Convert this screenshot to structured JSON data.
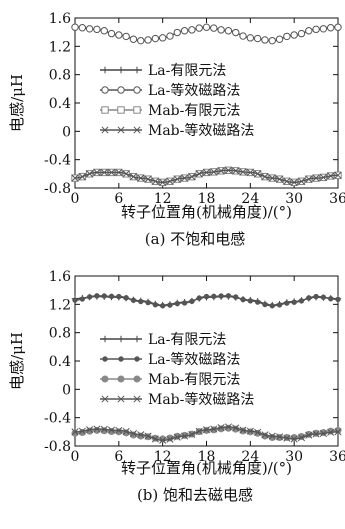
{
  "chart_data": [
    {
      "type": "line",
      "caption": "(a) 不饱和电感",
      "xlabel": "转子位置角(机械角度)/(°)",
      "ylabel": "电感/μH",
      "xlim": [
        0,
        36
      ],
      "ylim": [
        -0.8,
        1.6
      ],
      "xticks": [
        0,
        6,
        12,
        18,
        24,
        30,
        36
      ],
      "yticks": [
        -0.8,
        -0.4,
        0,
        0.4,
        0.8,
        1.2,
        1.6
      ],
      "ytick_labels": [
        "-0.8",
        "-0.4",
        "0",
        "0.4",
        "0.8",
        "1.2",
        "1.6"
      ],
      "legend_position": "center-right",
      "x": [
        0,
        3,
        6,
        9,
        12,
        15,
        18,
        21,
        24,
        27,
        30,
        33,
        36
      ],
      "series": [
        {
          "name": "La-有限元法",
          "marker": "plus",
          "values": [
            1.47,
            1.44,
            1.36,
            1.28,
            1.32,
            1.42,
            1.47,
            1.42,
            1.32,
            1.28,
            1.36,
            1.44,
            1.47
          ]
        },
        {
          "name": "La-等效磁路法",
          "marker": "circle",
          "values": [
            1.47,
            1.44,
            1.36,
            1.28,
            1.32,
            1.42,
            1.47,
            1.42,
            1.32,
            1.28,
            1.36,
            1.44,
            1.47
          ]
        },
        {
          "name": "Mab-有限元法",
          "marker": "square",
          "values": [
            -0.66,
            -0.58,
            -0.58,
            -0.66,
            -0.72,
            -0.66,
            -0.58,
            -0.55,
            -0.58,
            -0.66,
            -0.72,
            -0.66,
            -0.62
          ]
        },
        {
          "name": "Mab-等效磁路法",
          "marker": "x",
          "values": [
            -0.66,
            -0.58,
            -0.58,
            -0.66,
            -0.72,
            -0.66,
            -0.58,
            -0.55,
            -0.58,
            -0.66,
            -0.72,
            -0.66,
            -0.62
          ]
        }
      ]
    },
    {
      "type": "line",
      "caption": "(b) 饱和去磁电感",
      "xlabel": "转子位置角(机械角度)/(°)",
      "ylabel": "电感/μH",
      "xlim": [
        0,
        36
      ],
      "ylim": [
        -0.8,
        1.6
      ],
      "xticks": [
        0,
        6,
        12,
        18,
        24,
        30,
        36
      ],
      "yticks": [
        -0.8,
        -0.4,
        0,
        0.4,
        0.8,
        1.2,
        1.6
      ],
      "ytick_labels": [
        "-0.8",
        "-0.4",
        "0",
        "0.4",
        "0.8",
        "1.2",
        "1.6"
      ],
      "legend_position": "center-right",
      "x": [
        0,
        3,
        6,
        9,
        12,
        15,
        18,
        21,
        24,
        27,
        30,
        33,
        36
      ],
      "series": [
        {
          "name": "La-有限元法",
          "marker": "plus",
          "values": [
            1.28,
            1.31,
            1.3,
            1.25,
            1.19,
            1.23,
            1.3,
            1.31,
            1.26,
            1.19,
            1.24,
            1.3,
            1.28
          ]
        },
        {
          "name": "La-等效磁路法",
          "marker": "dot",
          "values": [
            1.26,
            1.32,
            1.31,
            1.24,
            1.18,
            1.22,
            1.31,
            1.32,
            1.25,
            1.18,
            1.23,
            1.31,
            1.27
          ]
        },
        {
          "name": "Mab-有限元法",
          "marker": "filled-circle",
          "values": [
            -0.62,
            -0.58,
            -0.6,
            -0.66,
            -0.7,
            -0.65,
            -0.58,
            -0.55,
            -0.6,
            -0.68,
            -0.68,
            -0.62,
            -0.58
          ]
        },
        {
          "name": "Mab-等效磁路法",
          "marker": "x",
          "values": [
            -0.6,
            -0.56,
            -0.58,
            -0.64,
            -0.72,
            -0.66,
            -0.57,
            -0.53,
            -0.59,
            -0.66,
            -0.7,
            -0.63,
            -0.6
          ]
        }
      ]
    }
  ]
}
